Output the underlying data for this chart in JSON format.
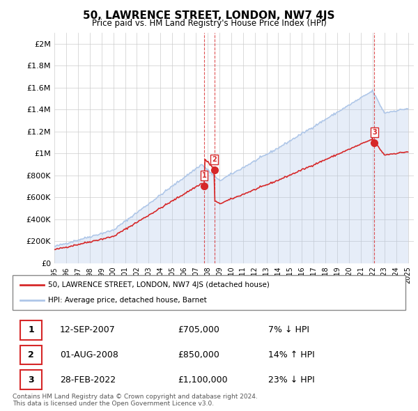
{
  "title": "50, LAWRENCE STREET, LONDON, NW7 4JS",
  "subtitle": "Price paid vs. HM Land Registry's House Price Index (HPI)",
  "ylabel_ticks": [
    "£0",
    "£200K",
    "£400K",
    "£600K",
    "£800K",
    "£1M",
    "£1.2M",
    "£1.4M",
    "£1.6M",
    "£1.8M",
    "£2M"
  ],
  "ylabel_values": [
    0,
    200000,
    400000,
    600000,
    800000,
    1000000,
    1200000,
    1400000,
    1600000,
    1800000,
    2000000
  ],
  "ylim": [
    0,
    2100000
  ],
  "hpi_color": "#aec6e8",
  "price_color": "#d62728",
  "transaction_color": "#d62728",
  "vline_color": "#d62728",
  "transactions": [
    {
      "label": "1",
      "date_num": 2007.71,
      "price": 705000,
      "pct": "7%",
      "dir": "↓",
      "date_str": "12-SEP-2007"
    },
    {
      "label": "2",
      "date_num": 2008.58,
      "price": 850000,
      "pct": "14%",
      "dir": "↑",
      "date_str": "01-AUG-2008"
    },
    {
      "label": "3",
      "date_num": 2022.16,
      "price": 1100000,
      "pct": "23%",
      "dir": "↓",
      "date_str": "28-FEB-2022"
    }
  ],
  "legend_line1": "50, LAWRENCE STREET, LONDON, NW7 4JS (detached house)",
  "legend_line2": "HPI: Average price, detached house, Barnet",
  "footnote": "Contains HM Land Registry data © Crown copyright and database right 2024.\nThis data is licensed under the Open Government Licence v3.0.",
  "table_rows": [
    [
      "1",
      "12-SEP-2007",
      "£705,000",
      "7% ↓ HPI"
    ],
    [
      "2",
      "01-AUG-2008",
      "£850,000",
      "14% ↑ HPI"
    ],
    [
      "3",
      "28-FEB-2022",
      "£1,100,000",
      "23% ↓ HPI"
    ]
  ]
}
